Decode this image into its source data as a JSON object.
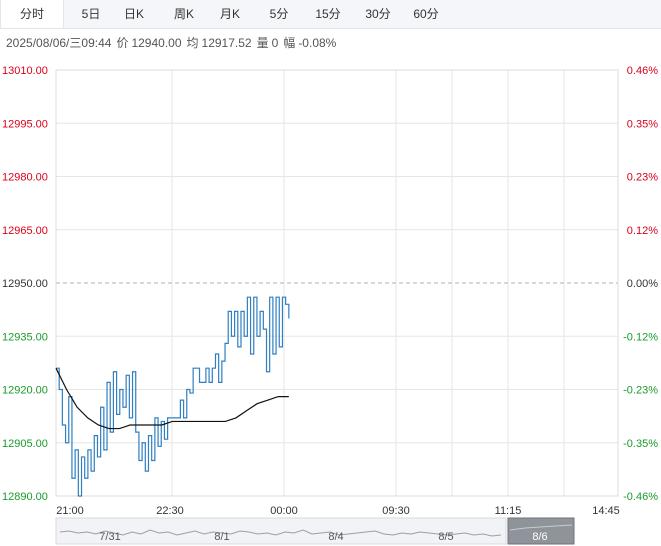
{
  "tabs": [
    "分时",
    "5日",
    "日K",
    "周K",
    "月K",
    "5分",
    "15分",
    "30分",
    "60分"
  ],
  "active_tab": 0,
  "quote": {
    "datetime": "2025/08/06/三09:44",
    "price_label": "价",
    "price": "12940.00",
    "avg_label": "均",
    "avg": "12917.52",
    "vol_label": "量",
    "vol": "0",
    "chg_label": "幅",
    "chg": "-0.08%"
  },
  "colors": {
    "up": "#d9001b",
    "down": "#1a9c2b",
    "price_line": "#2f7fc1",
    "avg_line": "#111111"
  },
  "chart_data": {
    "type": "line",
    "ylim": [
      12890,
      13010
    ],
    "left_ticks": [
      "13010.00",
      "12995.00",
      "12980.00",
      "12965.00",
      "12950.00",
      "12935.00",
      "12920.00",
      "12905.00",
      "12890.00"
    ],
    "right_ticks": [
      "0.46%",
      "0.35%",
      "0.23%",
      "0.12%",
      "0.00%",
      "-0.12%",
      "-0.23%",
      "-0.35%",
      "-0.46%"
    ],
    "base_value": 12950,
    "x_ticks": [
      "21:00",
      "22:30",
      "00:00",
      "09:30",
      "11:15",
      "14:45"
    ],
    "series": [
      {
        "values": [
          12926,
          12920,
          12910,
          12905,
          12918,
          12895,
          12903,
          12890,
          12901,
          12895,
          12903,
          12897,
          12907,
          12901,
          12915,
          12903,
          12922,
          12908,
          12925,
          12913,
          12920,
          12915,
          12924,
          12912,
          12925,
          12908,
          12900,
          12905,
          12897,
          12907,
          12900,
          12912,
          12904,
          12911,
          12906,
          12912,
          12912,
          12912,
          12912,
          12917,
          12912,
          12920,
          12919,
          12926,
          12926,
          12922,
          12922,
          12926,
          12922,
          12926,
          12930,
          12922,
          12928,
          12933,
          12942,
          12935,
          12942,
          12932,
          12942,
          12935,
          12946,
          12930,
          12946,
          12935,
          12942,
          12937,
          12925,
          12946,
          12930,
          12946,
          12932,
          12946,
          12944,
          12940
        ]
      },
      {
        "values": [
          12926,
          12920,
          12915,
          12912,
          12910,
          12909,
          12909,
          12910,
          12910,
          12910,
          12910,
          12911,
          12911,
          12911,
          12911,
          12911,
          12911,
          12912,
          12914,
          12916,
          12917,
          12918,
          12918
        ]
      }
    ]
  },
  "overview": {
    "dates": [
      "7/31",
      "8/1",
      "8/4",
      "8/5",
      "8/6"
    ]
  }
}
